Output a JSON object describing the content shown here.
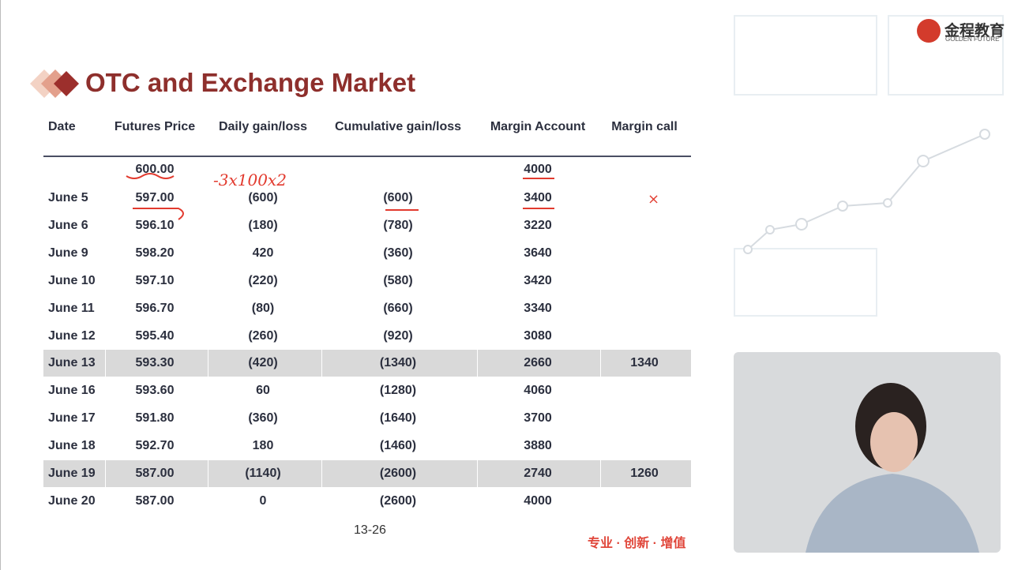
{
  "header": {
    "title": "OTC and Exchange Market"
  },
  "logo": {
    "name": "金程教育",
    "subtitle": "GOLDEN FUTURE"
  },
  "table": {
    "columns": [
      "Date",
      "Futures Price",
      "Daily gain/loss",
      "Cumulative gain/loss",
      "Margin Account",
      "Margin call"
    ],
    "rows": [
      [
        null,
        "600.00",
        null,
        null,
        "4000",
        null
      ],
      [
        "June 5",
        "597.00",
        "(600)",
        "(600)",
        "3400",
        null
      ],
      [
        "June 6",
        "596.10",
        "(180)",
        "(780)",
        "3220",
        null
      ],
      [
        "June 9",
        "598.20",
        "420",
        "(360)",
        "3640",
        null
      ],
      [
        "June 10",
        "597.10",
        "(220)",
        "(580)",
        "3420",
        null
      ],
      [
        "June 11",
        "596.70",
        "(80)",
        "(660)",
        "3340",
        null
      ],
      [
        "June 12",
        "595.40",
        "(260)",
        "(920)",
        "3080",
        null
      ],
      [
        "June 13",
        "593.30",
        "(420)",
        "(1340)",
        "2660",
        "1340"
      ],
      [
        "June 16",
        "593.60",
        "60",
        "(1280)",
        "4060",
        null
      ],
      [
        "June 17",
        "591.80",
        "(360)",
        "(1640)",
        "3700",
        null
      ],
      [
        "June 18",
        "592.70",
        "180",
        "(1460)",
        "3880",
        null
      ],
      [
        "June 19",
        "587.00",
        "(1140)",
        "(2600)",
        "2740",
        "1260"
      ],
      [
        "June 20",
        "587.00",
        "0",
        "(2600)",
        "4000",
        null
      ]
    ]
  },
  "annotations": [
    "-3x100x2",
    "×"
  ],
  "footer": {
    "page": "13-26",
    "slogan": "专业 · 创新 · 增值"
  }
}
